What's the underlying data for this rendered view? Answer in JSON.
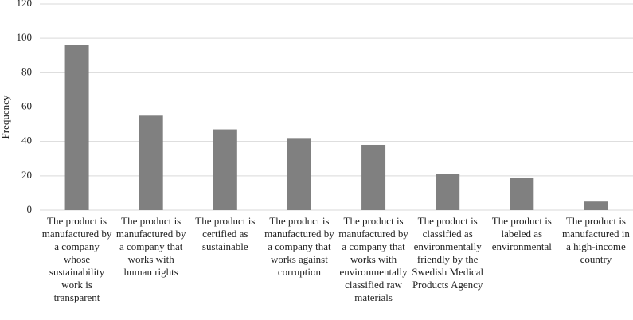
{
  "chart_data": {
    "type": "bar",
    "y_label": "Frequency",
    "categories": [
      "The product is manufactured by a company whose sustainability work is transparent",
      "The product is manufactured by a company that works with human rights",
      "The product is certified as sustainable",
      "The product is manufactured by a company that works against corruption",
      "The product is manufactured by a company that works with environmentally classified raw materials",
      "The product is classified as environmentally friendly by the Swedish Medical Products Agency",
      "The product is labeled as environmental",
      "The product is manufactured in a high-income country"
    ],
    "values": [
      96,
      55,
      47,
      42,
      38,
      21,
      19,
      5
    ],
    "color": "#808080",
    "ylim": [
      0,
      120
    ],
    "yticks": [
      0,
      20,
      40,
      60,
      80,
      100,
      120
    ],
    "grid": true
  }
}
